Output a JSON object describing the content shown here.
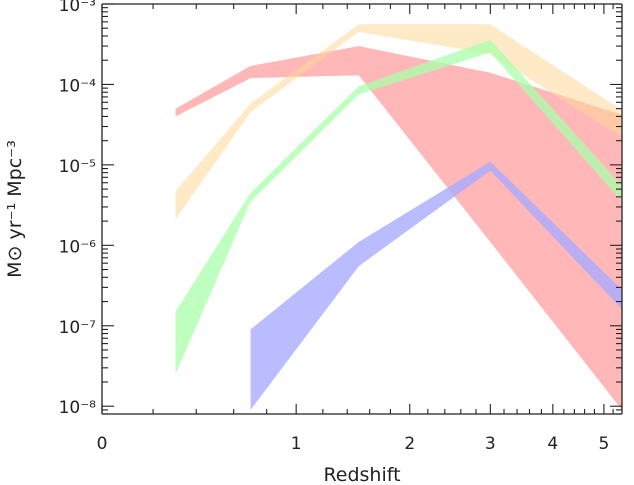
{
  "chart_data": {
    "type": "area",
    "title": "",
    "xlabel": "Redshift",
    "ylabel": "M⊙ yr⁻¹ Mpc⁻³",
    "x_scale": "log(1+z)",
    "y_scale": "log",
    "xlim": [
      0,
      5.4
    ],
    "ylim": [
      8e-09,
      0.001
    ],
    "grid": false,
    "x_tick_labels": [
      "0",
      "1",
      "2",
      "3",
      "4",
      "5"
    ],
    "x_ticks": [
      0,
      1,
      2,
      3,
      4,
      5
    ],
    "y_tick_labels": [
      {
        "label": "10⁻³",
        "value": 0.001
      },
      {
        "label": "10⁻⁴",
        "value": 0.0001
      },
      {
        "label": "10⁻⁵",
        "value": 1e-05
      },
      {
        "label": "10⁻⁶",
        "value": 1e-06
      },
      {
        "label": "10⁻⁷",
        "value": 1e-07
      },
      {
        "label": "10⁻⁸",
        "value": 1e-08
      }
    ],
    "series": [
      {
        "color": "#ffaaaa",
        "opacity": 0.85,
        "x": [
          0.3,
          0.7,
          1.5,
          3.0,
          5.4
        ],
        "upper": [
          5e-05,
          0.00017,
          0.0003,
          0.00014,
          4.2e-05
        ],
        "lower": [
          4e-05,
          0.00012,
          0.00013,
          1.1e-06,
          9e-09
        ]
      },
      {
        "color": "#ffd89a",
        "opacity": 0.55,
        "x": [
          0.3,
          0.7,
          1.5,
          3.0,
          5.4
        ],
        "upper": [
          4.7e-06,
          5.8e-05,
          0.00056,
          0.00056,
          4.8e-05
        ],
        "lower": [
          2.1e-06,
          4.5e-05,
          0.00045,
          0.00024,
          2.2e-05
        ]
      },
      {
        "color": "#aaffaa",
        "opacity": 0.75,
        "x": [
          0.3,
          0.7,
          1.5,
          3.0,
          5.4
        ],
        "upper": [
          1.5e-07,
          4.5e-06,
          9.5e-05,
          0.00036,
          5.5e-06
        ],
        "lower": [
          2.5e-08,
          3.5e-06,
          7.5e-05,
          0.00025,
          3.5e-06
        ]
      },
      {
        "color": "#aaaaff",
        "opacity": 0.8,
        "x": [
          0.7,
          1.5,
          3.0,
          5.4
        ],
        "upper": [
          9e-08,
          1.1e-06,
          1.1e-05,
          2.8e-07
        ],
        "lower": [
          9e-09,
          5.5e-07,
          8.5e-06,
          1.6e-07
        ]
      }
    ]
  }
}
